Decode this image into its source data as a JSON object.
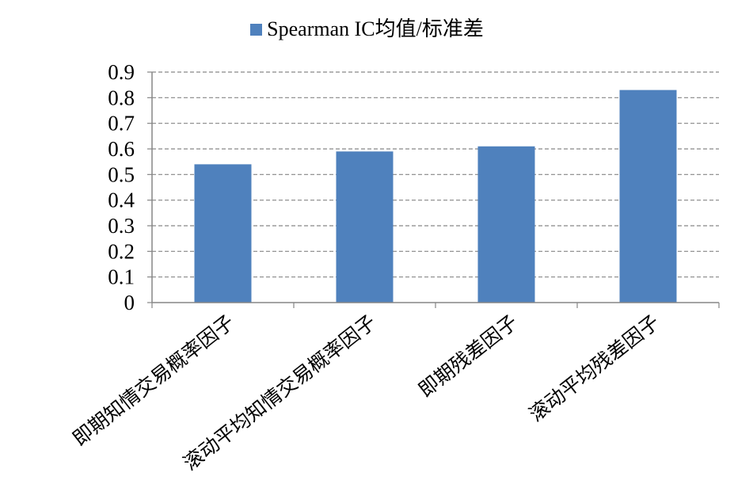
{
  "chart_data": {
    "type": "bar",
    "categories": [
      "即期知情交易概率因子",
      "滚动平均知情交易概率因子",
      "即期残差因子",
      "滚动平均残差因子"
    ],
    "series": [
      {
        "name": "Spearman IC均值/标准差",
        "values": [
          0.54,
          0.59,
          0.61,
          0.83
        ]
      }
    ],
    "ylim": [
      0,
      0.9
    ],
    "yticks": [
      "0",
      "0.1",
      "0.2",
      "0.3",
      "0.4",
      "0.5",
      "0.6",
      "0.7",
      "0.8",
      "0.9"
    ],
    "ytick_values": [
      0,
      0.1,
      0.2,
      0.3,
      0.4,
      0.5,
      0.6,
      0.7,
      0.8,
      0.9
    ],
    "grid": true,
    "legend_position": "top-center",
    "colors": {
      "bar": "#4F81BD",
      "grid": "#868686",
      "axis": "#868686"
    }
  }
}
